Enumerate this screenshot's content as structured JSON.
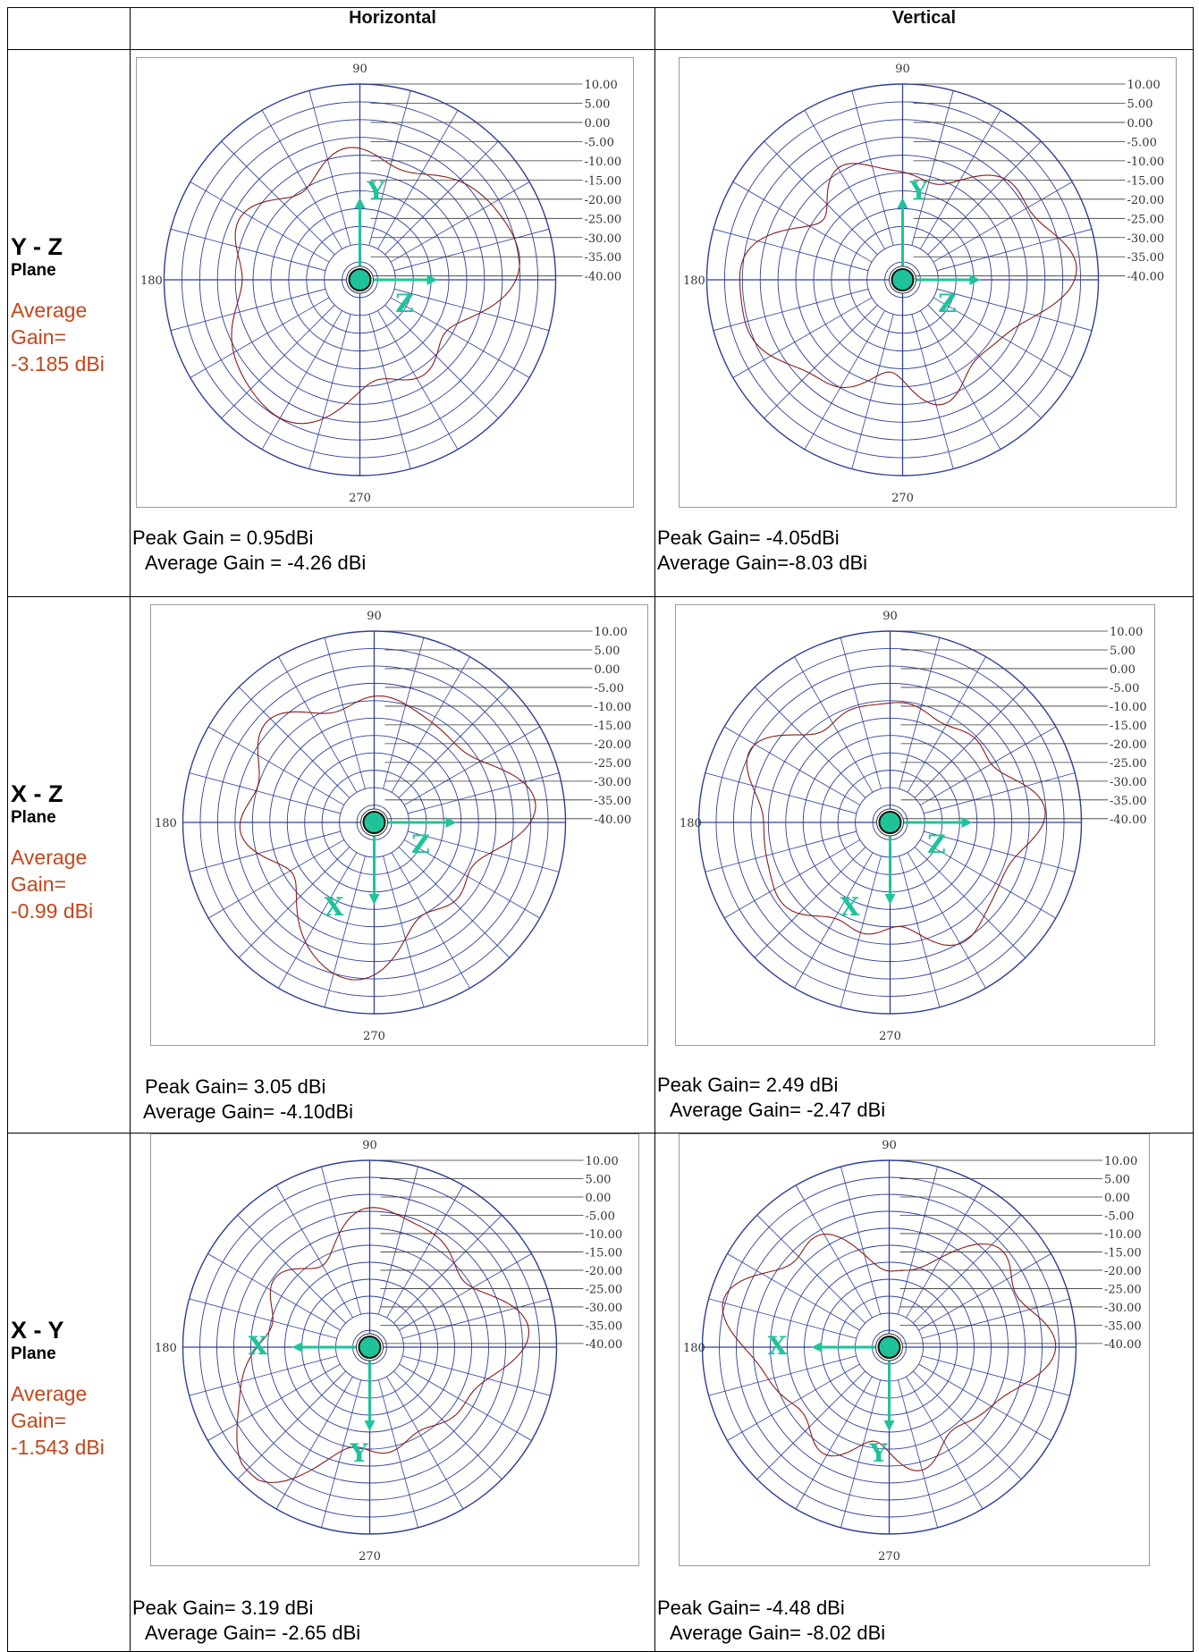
{
  "headers": {
    "corner": "",
    "horizontal": "Horizontal",
    "vertical": "Vertical"
  },
  "polar_labels": {
    "angles": {
      "top": "90",
      "left": "180",
      "bottom": "270"
    },
    "scale": [
      "10.00",
      "5.00",
      "0.00",
      "-5.00",
      "-10.00",
      "-15.00",
      "-20.00",
      "-25.00",
      "-30.00",
      "-35.00",
      "-40.00"
    ]
  },
  "colors": {
    "accent": "#c5451a",
    "axis": "#1fc39a",
    "grid": "#2e3f9a",
    "trace": "#8b1a1a"
  },
  "rows": [
    {
      "plane_name": "Y - Z",
      "plane_word": "Plane",
      "avg_label": "Average Gain=",
      "avg_value": "-3.185 dBi",
      "horizontal": {
        "axis_up": "Y",
        "axis_side": "Z",
        "peak": "Peak Gain = 0.95dBi",
        "average": "Average Gain = -4.26 dBi"
      },
      "vertical": {
        "axis_up": "Y",
        "axis_side": "Z",
        "peak": "Peak Gain= -4.05dBi",
        "average": "Average Gain=-8.03 dBi"
      }
    },
    {
      "plane_name": "X - Z",
      "plane_word": "Plane",
      "avg_label": "Average Gain=",
      "avg_value": "-0.99 dBi",
      "horizontal": {
        "axis_down": "X",
        "axis_side": "Z",
        "peak": "Peak Gain= 3.05 dBi",
        "average": "Average Gain= -4.10dBi"
      },
      "vertical": {
        "axis_down": "X",
        "axis_side": "Z",
        "peak": "Peak Gain= 2.49 dBi",
        "average": "Average Gain= -2.47 dBi"
      }
    },
    {
      "plane_name": "X - Y",
      "plane_word": "Plane",
      "avg_label": "Average Gain=",
      "avg_value": "-1.543 dBi",
      "horizontal": {
        "axis_left": "X",
        "axis_down": "Y",
        "peak": "Peak Gain= 3.19 dBi",
        "average": "Average Gain= -2.65 dBi"
      },
      "vertical": {
        "axis_left": "X",
        "axis_down": "Y",
        "peak": "Peak Gain= -4.48 dBi",
        "average": "Average Gain= -8.02 dBi"
      }
    }
  ]
}
